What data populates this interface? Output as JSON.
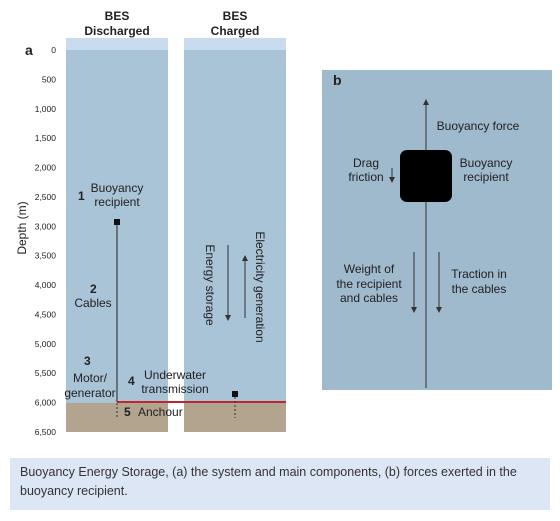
{
  "panel_a": {
    "label": "a",
    "columns": [
      {
        "title": [
          "BES",
          "Discharged"
        ]
      },
      {
        "title": [
          "BES",
          "Charged"
        ]
      }
    ],
    "axis_label": "Depth (m)",
    "depth_ticks": [
      "0",
      "500",
      "1,000",
      "1,500",
      "2,000",
      "2,500",
      "3,000",
      "3,500",
      "4,000",
      "4,500",
      "5,000",
      "5,500",
      "6,000",
      "6,500"
    ],
    "components": [
      {
        "number": "1",
        "label": [
          "Buoyancy",
          "recipient"
        ]
      },
      {
        "number": "2",
        "label": [
          "Cables"
        ]
      },
      {
        "number": "3",
        "label": [
          "Motor/",
          "generator"
        ]
      },
      {
        "number": "4",
        "label": [
          "Underwater",
          "transmission"
        ]
      },
      {
        "number": "5",
        "label": [
          "Anchour"
        ]
      }
    ],
    "flows": [
      "Energy storage",
      "Electricity generation"
    ]
  },
  "panel_b": {
    "label": "b",
    "forces": {
      "buoyancy_force": [
        "Buoyancy force"
      ],
      "drag": [
        "Drag",
        "friction"
      ],
      "recipient": [
        "Buoyancy",
        "recipient"
      ],
      "weight": [
        "Weight of",
        "the recipient",
        "and cables"
      ],
      "traction": [
        "Traction in",
        "the cables"
      ]
    }
  },
  "caption": "Buoyancy Energy Storage, (a) the system and main components, (b) forces exerted in the buoyancy recipient."
}
